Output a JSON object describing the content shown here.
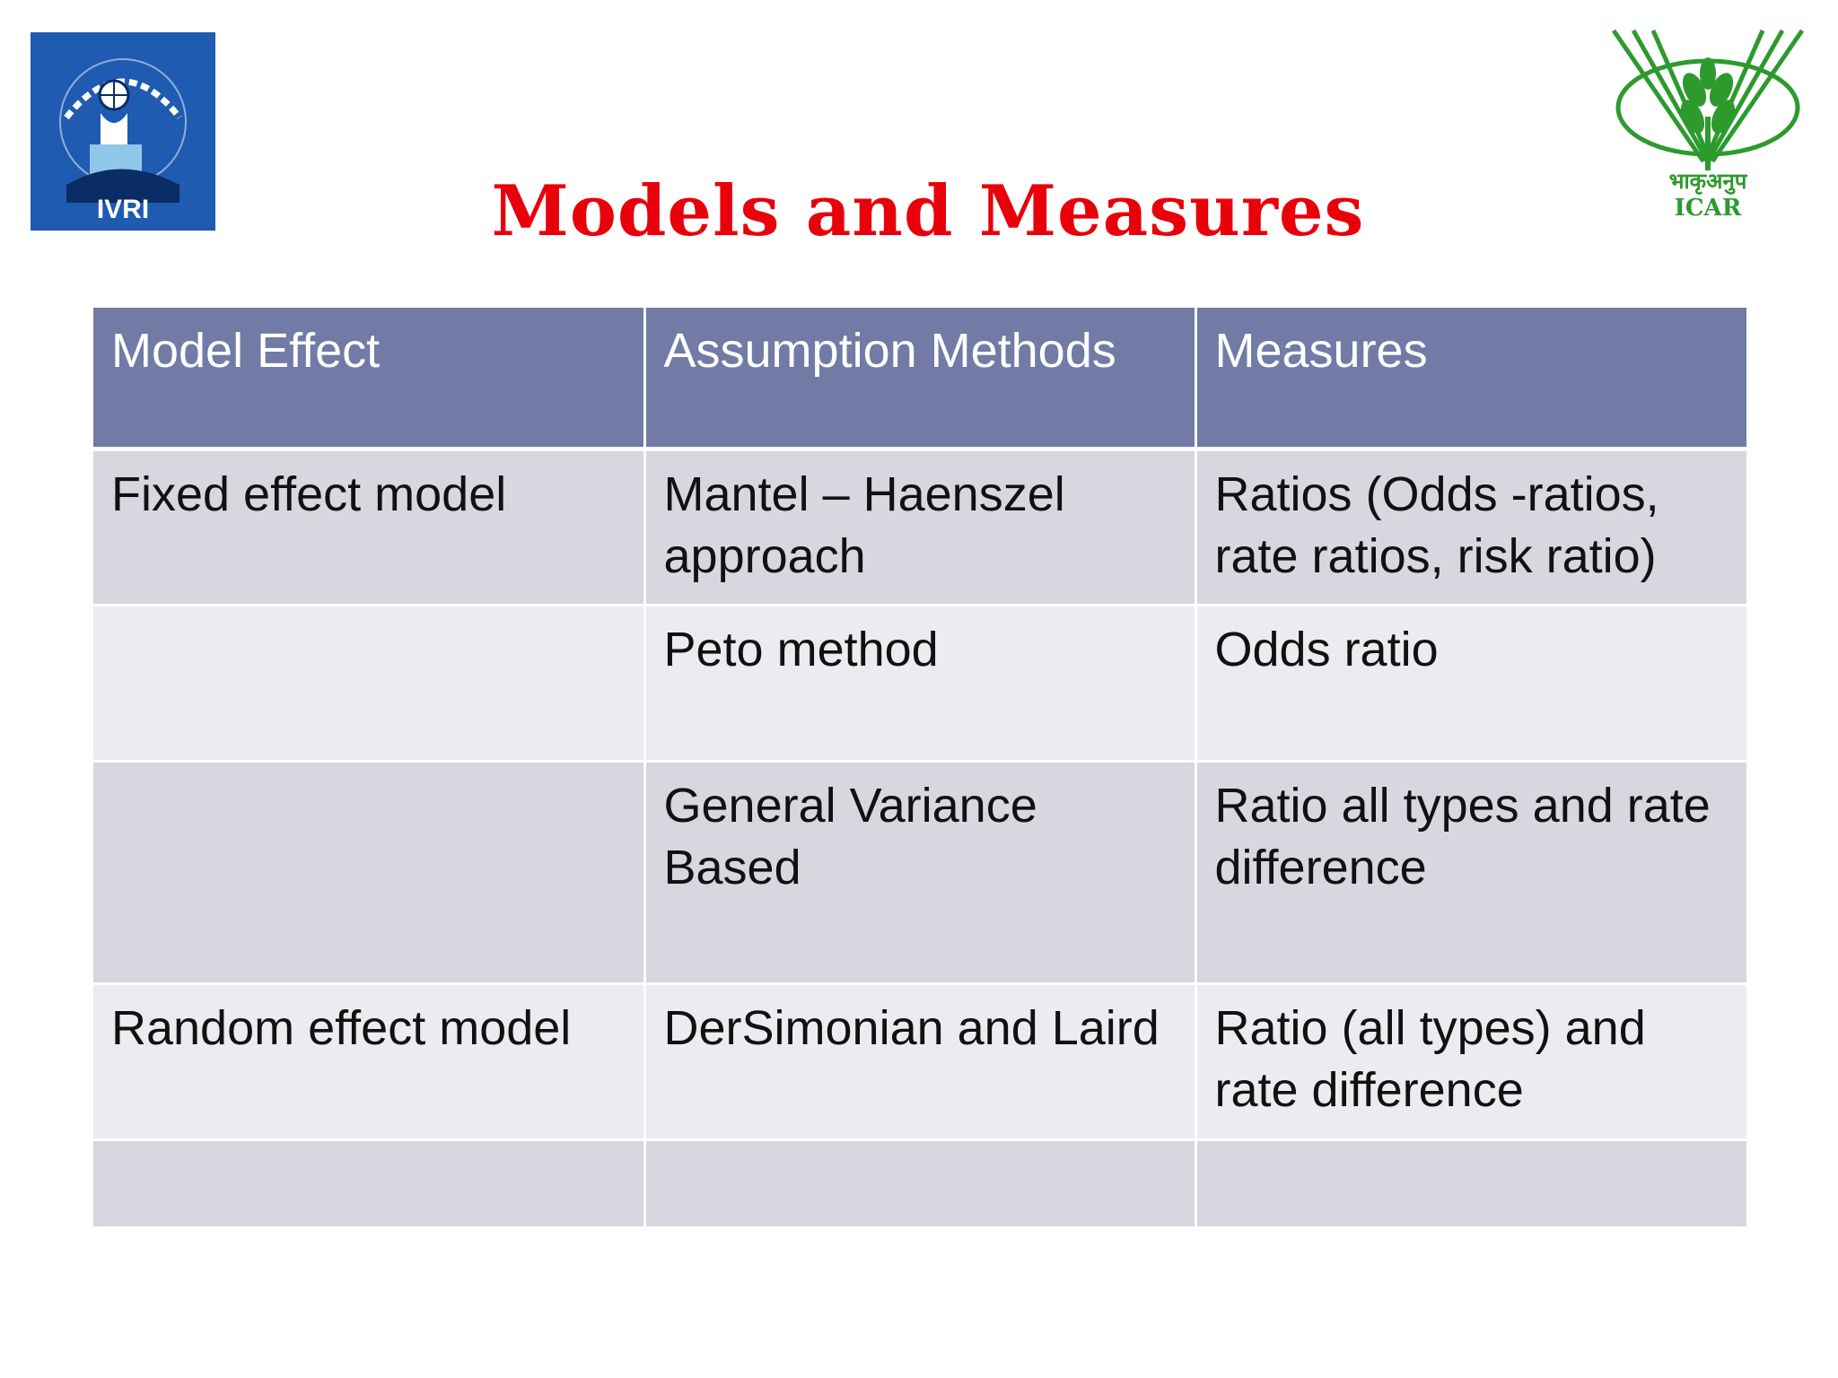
{
  "logos": {
    "left": {
      "label": "IVRI",
      "icon": "ivri-logo-icon"
    },
    "right": {
      "label": "ICAR",
      "hindi": "भाकृअनुप",
      "icon": "icar-logo-icon"
    }
  },
  "title": "Models and Measures",
  "table": {
    "headers": [
      "Model Effect",
      "Assumption Methods",
      "Measures"
    ],
    "rows": [
      [
        "Fixed effect model",
        "Mantel – Haenszel approach",
        "Ratios (Odds -ratios, rate ratios, risk ratio)"
      ],
      [
        "",
        "Peto method",
        "Odds ratio"
      ],
      [
        "",
        "General Variance Based",
        "Ratio all types and rate difference"
      ],
      [
        "Random effect model",
        "DerSimonian and Laird",
        "Ratio (all types) and rate difference"
      ],
      [
        "",
        "",
        ""
      ]
    ]
  },
  "colors": {
    "title": "#e8000b",
    "header_bg": "#717ba5",
    "row_dark": "#d6d7df",
    "row_light": "#ebebf0",
    "icar_green": "#2d9a2d",
    "ivri_blue": "#1f5bb0"
  }
}
